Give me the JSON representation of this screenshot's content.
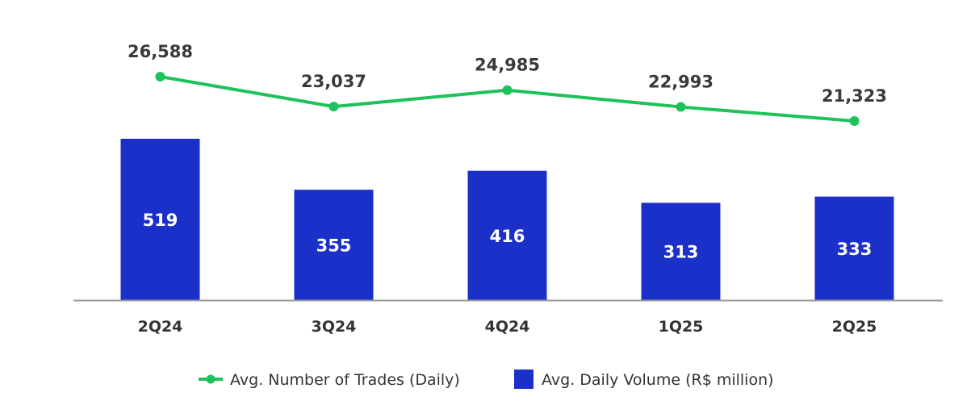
{
  "chart_data": {
    "type": "bar",
    "categories": [
      "2Q24",
      "3Q24",
      "4Q24",
      "1Q25",
      "2Q25"
    ],
    "series": [
      {
        "name": "Avg. Daily Volume (R$ million)",
        "type": "bar",
        "values": [
          519,
          355,
          416,
          313,
          333
        ],
        "labels": [
          "519",
          "355",
          "416",
          "313",
          "333"
        ],
        "color": "#1b30c8"
      },
      {
        "name": "Avg. Number of Trades (Daily)",
        "type": "line",
        "values": [
          26588,
          23037,
          24985,
          22993,
          21323
        ],
        "labels": [
          "26,588",
          "23,037",
          "24,985",
          "22,993",
          "21,323"
        ],
        "color": "#1ec25a"
      }
    ],
    "legend": {
      "position": "bottom",
      "items": [
        "Avg. Number of Trades (Daily)",
        "Avg. Daily Volume (R$ million)"
      ]
    },
    "grid": false,
    "title": "",
    "xlabel": "",
    "ylabel": ""
  }
}
